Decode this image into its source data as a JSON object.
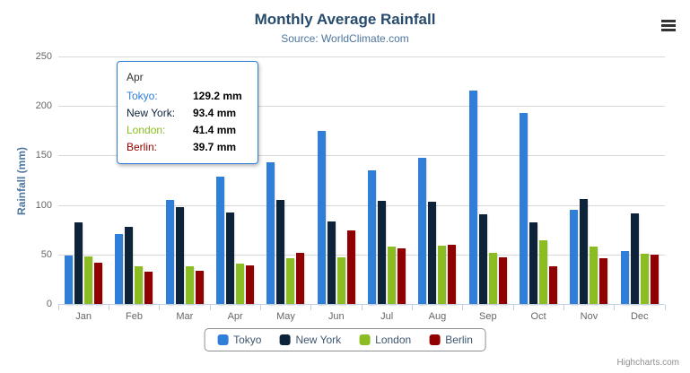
{
  "chart": {
    "title": "Monthly Average Rainfall",
    "subtitle": "Source: WorldClimate.com",
    "y_axis_title": "Rainfall (mm)",
    "credits": "Highcharts.com"
  },
  "icons": {
    "export_menu": "hamburger-lines"
  },
  "colors": {
    "tokyo": "#2f7ed8",
    "new_york": "#0d233a",
    "london": "#8bbc21",
    "berlin": "#910000",
    "title_text": "#274b6d",
    "subtitle_text": "#4d759e",
    "axis_text": "#666666",
    "gridline": "#d8d8d8"
  },
  "chart_data": {
    "type": "bar",
    "title": "Monthly Average Rainfall",
    "subtitle": "Source: WorldClimate.com",
    "xlabel": "",
    "ylabel": "Rainfall (mm)",
    "ylim": [
      0,
      250
    ],
    "y_ticks": [
      0,
      50,
      100,
      150,
      200,
      250
    ],
    "grid": true,
    "legend_position": "bottom",
    "categories": [
      "Jan",
      "Feb",
      "Mar",
      "Apr",
      "May",
      "Jun",
      "Jul",
      "Aug",
      "Sep",
      "Oct",
      "Nov",
      "Dec"
    ],
    "series": [
      {
        "name": "Tokyo",
        "color": "#2f7ed8",
        "values": [
          49.9,
          71.5,
          106.4,
          129.2,
          144.0,
          176.0,
          135.6,
          148.5,
          216.4,
          194.1,
          95.6,
          54.4
        ]
      },
      {
        "name": "New York",
        "color": "#0d233a",
        "values": [
          83.6,
          78.8,
          98.5,
          93.4,
          106.0,
          84.5,
          105.0,
          104.3,
          91.2,
          83.5,
          106.6,
          92.3
        ]
      },
      {
        "name": "London",
        "color": "#8bbc21",
        "values": [
          48.9,
          38.8,
          39.3,
          41.4,
          47.0,
          48.3,
          59.0,
          59.6,
          52.4,
          65.2,
          59.3,
          51.2
        ]
      },
      {
        "name": "Berlin",
        "color": "#910000",
        "values": [
          42.4,
          33.2,
          34.5,
          39.7,
          52.6,
          75.5,
          57.4,
          60.4,
          47.6,
          39.1,
          46.8,
          51.1
        ]
      }
    ]
  },
  "tooltip": {
    "header": "Apr",
    "rows": [
      {
        "label": "Tokyo:",
        "value": "129.2 mm",
        "color": "#2f7ed8"
      },
      {
        "label": "New York:",
        "value": "93.4 mm",
        "color": "#0d233a"
      },
      {
        "label": "London:",
        "value": "41.4 mm",
        "color": "#8bbc21"
      },
      {
        "label": "Berlin:",
        "value": "39.7 mm",
        "color": "#910000"
      }
    ]
  },
  "legend": {
    "items": [
      {
        "label": "Tokyo",
        "color": "#2f7ed8"
      },
      {
        "label": "New York",
        "color": "#0d233a"
      },
      {
        "label": "London",
        "color": "#8bbc21"
      },
      {
        "label": "Berlin",
        "color": "#910000"
      }
    ]
  }
}
